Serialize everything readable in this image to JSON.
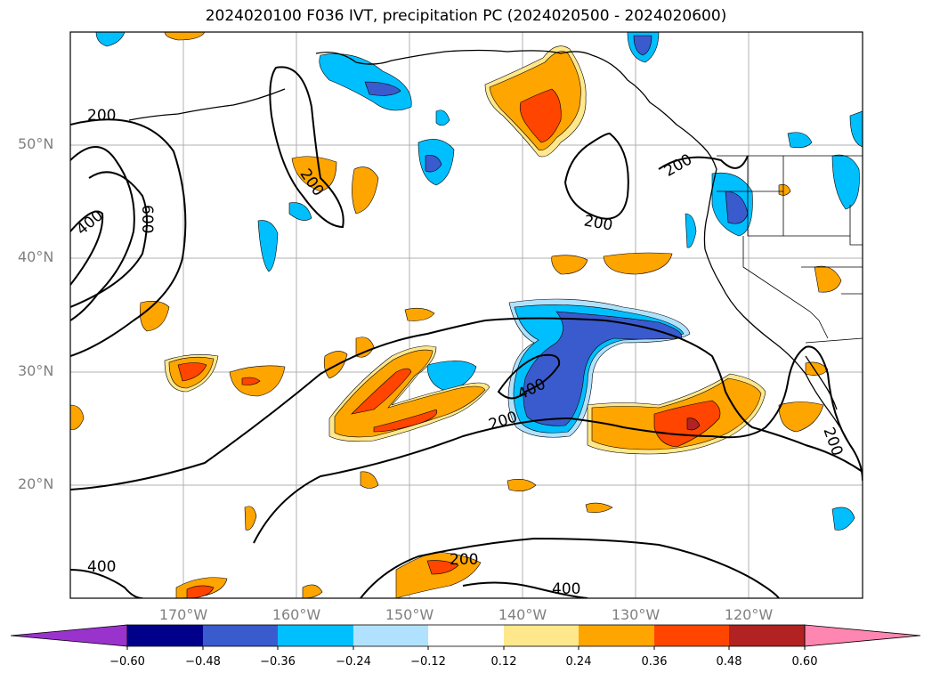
{
  "title": "2024020100 F036 IVT, precipitation PC (2024020500 - 2024020600)",
  "map": {
    "lat_labels": [
      "50°N",
      "40°N",
      "30°N",
      "20°N"
    ],
    "lon_labels": [
      "170°W",
      "160°W",
      "150°W",
      "140°W",
      "130°W",
      "120°W"
    ],
    "contour_labels": [
      "200",
      "400",
      "600",
      "200",
      "200",
      "200",
      "200",
      "200",
      "400",
      "200",
      "200",
      "400",
      "200",
      "400"
    ],
    "contour_levels": [
      200,
      400,
      600,
      800
    ]
  },
  "colorbar": {
    "tick_labels": [
      "−0.60",
      "−0.48",
      "−0.36",
      "−0.24",
      "−0.12",
      "0.12",
      "0.24",
      "0.36",
      "0.48",
      "0.60"
    ],
    "colors": [
      "#9a32cd",
      "#00008b",
      "#3a5bcd",
      "#00bfff",
      "#b0e2ff",
      "#ffffff",
      "#ffe78b",
      "#ffa500",
      "#ff4500",
      "#b22222",
      "#ff86b0"
    ],
    "extend": "both"
  }
}
